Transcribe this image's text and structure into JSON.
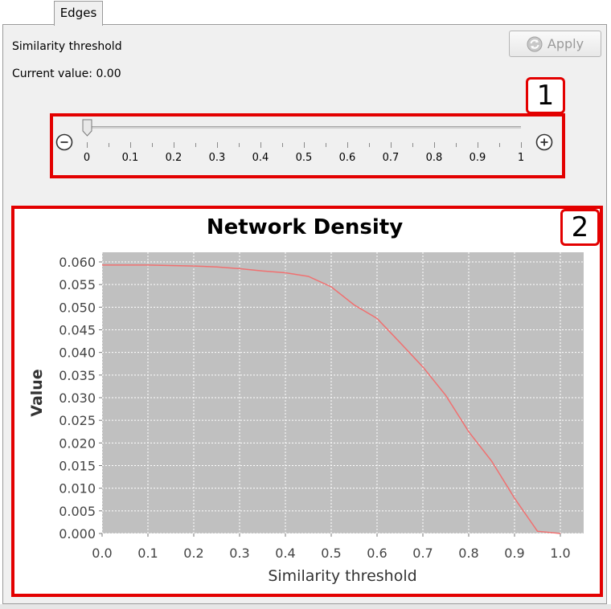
{
  "tabs": [
    {
      "label": "Edges",
      "active": true
    }
  ],
  "panel": {
    "similarity_label": "Similarity threshold",
    "current_value_label": "Current value:",
    "current_value": "0.00",
    "apply_label": "Apply",
    "apply_icon": "refresh-icon",
    "apply_enabled": false
  },
  "slider": {
    "value": 0.0,
    "min": 0,
    "max": 1,
    "tick_labels": [
      "0",
      "0.1",
      "0.2",
      "0.3",
      "0.4",
      "0.5",
      "0.6",
      "0.7",
      "0.8",
      "0.9",
      "1"
    ],
    "minus_icon": "zoom-out-icon",
    "plus_icon": "zoom-in-icon"
  },
  "callouts": {
    "slider": "1",
    "chart": "2"
  },
  "colors": {
    "callout": "#e30000",
    "plot_bg": "#c0c0c0",
    "series": "#f07070"
  },
  "chart_data": {
    "type": "line",
    "title": "Network Density",
    "xlabel": "Similarity threshold",
    "ylabel": "Value",
    "xlim": [
      0.0,
      1.0
    ],
    "ylim": [
      0.0,
      0.06
    ],
    "x_ticks": [
      "0.0",
      "0.1",
      "0.2",
      "0.3",
      "0.4",
      "0.5",
      "0.6",
      "0.7",
      "0.8",
      "0.9",
      "1.0"
    ],
    "y_ticks": [
      "0.000",
      "0.005",
      "0.010",
      "0.015",
      "0.020",
      "0.025",
      "0.030",
      "0.035",
      "0.040",
      "0.045",
      "0.050",
      "0.055",
      "0.060"
    ],
    "grid": true,
    "legend": false,
    "series": [
      {
        "x": [
          0.0,
          0.05,
          0.1,
          0.15,
          0.2,
          0.25,
          0.3,
          0.35,
          0.4,
          0.45,
          0.5,
          0.55,
          0.6,
          0.65,
          0.7,
          0.75,
          0.8,
          0.85,
          0.9,
          0.95,
          1.0
        ],
        "y": [
          0.0593,
          0.0593,
          0.0593,
          0.0592,
          0.0591,
          0.0589,
          0.0585,
          0.058,
          0.0576,
          0.0568,
          0.0545,
          0.0505,
          0.0475,
          0.0422,
          0.0368,
          0.0305,
          0.0225,
          0.016,
          0.0078,
          0.0005,
          0.0
        ]
      }
    ]
  }
}
